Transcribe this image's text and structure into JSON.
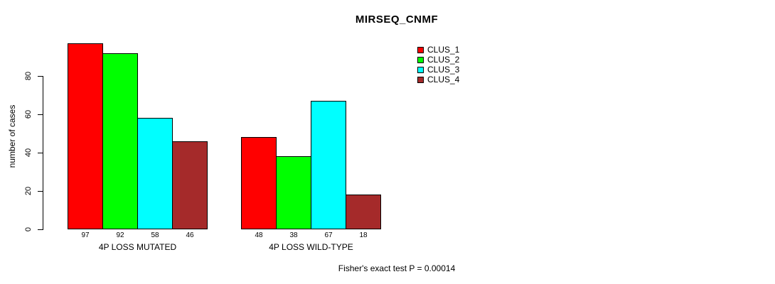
{
  "chart_data": {
    "type": "bar",
    "title": "MIRSEQ_CNMF",
    "ylabel": "number of cases",
    "xlabel": "",
    "categories": [
      "4P LOSS MUTATED",
      "4P LOSS WILD-TYPE"
    ],
    "series": [
      {
        "name": "CLUS_1",
        "color": "#ff0000",
        "values": [
          97,
          48
        ]
      },
      {
        "name": "CLUS_2",
        "color": "#00ff00",
        "values": [
          92,
          38
        ]
      },
      {
        "name": "CLUS_3",
        "color": "#00ffff",
        "values": [
          58,
          67
        ]
      },
      {
        "name": "CLUS_4",
        "color": "#a52a2a",
        "values": [
          46,
          18
        ]
      }
    ],
    "yticks": [
      0,
      20,
      40,
      60,
      80
    ],
    "ylim": [
      0,
      100
    ],
    "grid": false,
    "bar_value_labels_shown": true,
    "legend_position": "top-right",
    "annotation": "Fisher's exact test P = 0.00014",
    "bar_border_color": "#000000",
    "axis_color": "#000000",
    "text_color": "#000000",
    "background_color": "#ffffff"
  }
}
